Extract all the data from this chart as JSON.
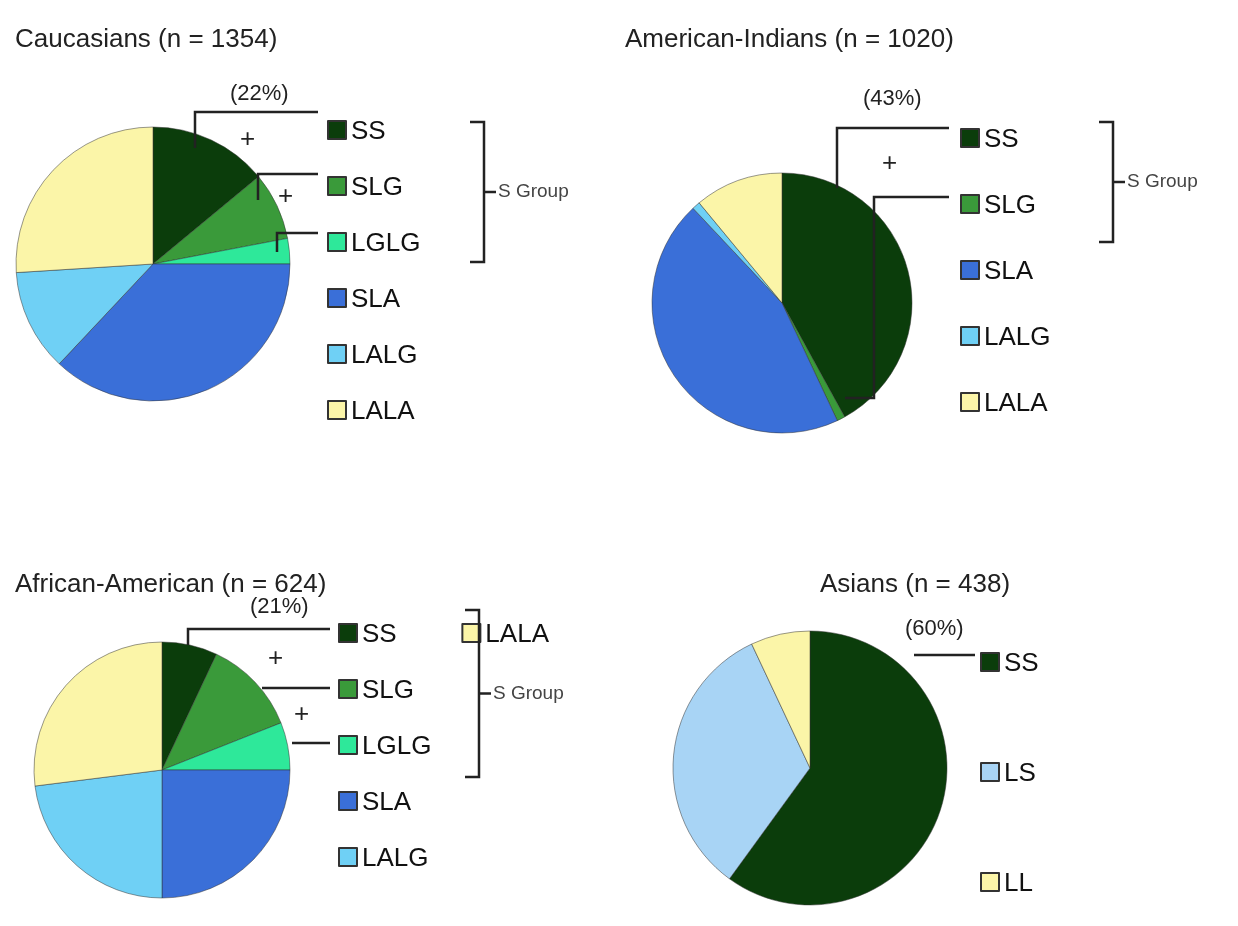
{
  "chart_data": [
    {
      "type": "pie",
      "title": "Caucasians (n = 1354)",
      "categories": [
        "SS",
        "SLG",
        "LGLG",
        "SLA",
        "LALG",
        "LALA"
      ],
      "values": [
        14,
        8,
        3,
        37,
        12,
        26
      ],
      "colors": [
        "#0b3d0b",
        "#3a9a3a",
        "#2ee89a",
        "#3a6fd8",
        "#6fd0f5",
        "#fbf5a8"
      ],
      "legend": "right",
      "annotations": [
        "(22%)",
        "+",
        "+",
        "S Group"
      ]
    },
    {
      "type": "pie",
      "title": "American-Indians (n = 1020)",
      "categories": [
        "SS",
        "SLG",
        "SLA",
        "LALG",
        "LALA"
      ],
      "values": [
        42,
        1,
        45,
        1,
        11
      ],
      "colors": [
        "#0b3d0b",
        "#3a9a3a",
        "#3a6fd8",
        "#6fd0f5",
        "#fbf5a8"
      ],
      "legend": "right",
      "annotations": [
        "(43%)",
        "+",
        "S Group"
      ]
    },
    {
      "type": "pie",
      "title": "African-American (n = 624)",
      "categories": [
        "SS",
        "SLG",
        "LGLG",
        "SLA",
        "LALG",
        "LALA"
      ],
      "values": [
        7,
        12,
        6,
        25,
        23,
        27
      ],
      "colors": [
        "#0b3d0b",
        "#3a9a3a",
        "#2ee89a",
        "#3a6fd8",
        "#6fd0f5",
        "#fbf5a8"
      ],
      "legend": "right",
      "annotations": [
        "(21%)",
        "+",
        "+",
        "S Group"
      ]
    },
    {
      "type": "pie",
      "title": "Asians (n = 438)",
      "categories": [
        "SS",
        "LS",
        "LL"
      ],
      "values": [
        60,
        33,
        7
      ],
      "colors": [
        "#0b3d0b",
        "#a8d4f5",
        "#fbf5a8"
      ],
      "legend": "right",
      "annotations": [
        "(60%)"
      ]
    }
  ]
}
